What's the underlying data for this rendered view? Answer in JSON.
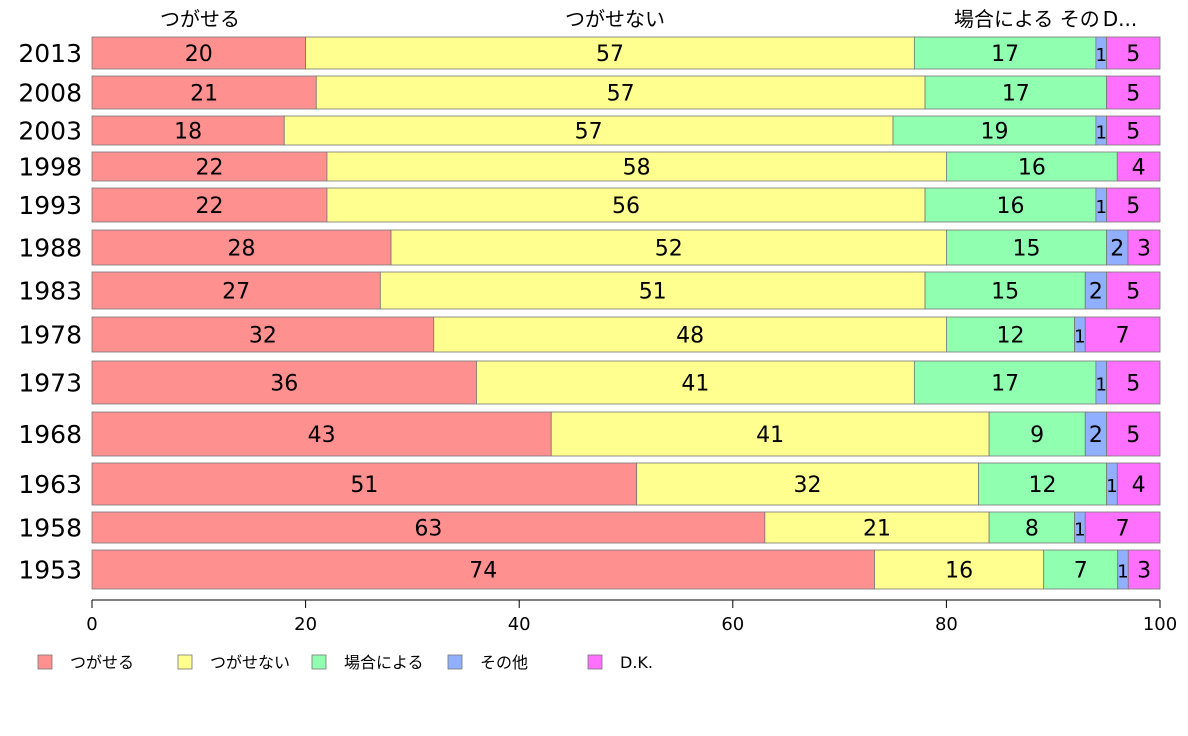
{
  "chart_data": {
    "type": "bar",
    "orientation": "horizontal",
    "stacked": true,
    "categories": [
      "2013",
      "2008",
      "2003",
      "1998",
      "1993",
      "1988",
      "1983",
      "1978",
      "1973",
      "1968",
      "1963",
      "1958",
      "1953"
    ],
    "series": [
      {
        "name": "つがせる",
        "color": "#ff9090",
        "values": [
          20,
          21,
          18,
          22,
          22,
          28,
          27,
          32,
          36,
          43,
          51,
          63,
          74
        ]
      },
      {
        "name": "つがせない",
        "color": "#ffff90",
        "values": [
          57,
          57,
          57,
          58,
          56,
          52,
          51,
          48,
          41,
          41,
          32,
          21,
          16
        ]
      },
      {
        "name": "場合による",
        "color": "#90ffb0",
        "values": [
          17,
          17,
          19,
          16,
          16,
          15,
          15,
          12,
          17,
          9,
          12,
          8,
          7
        ]
      },
      {
        "name": "その他",
        "color": "#90b0ff",
        "values": [
          1,
          0,
          1,
          0,
          1,
          2,
          2,
          1,
          1,
          2,
          1,
          1,
          1
        ]
      },
      {
        "name": "D.K.",
        "color": "#ff70ff",
        "values": [
          5,
          5,
          5,
          4,
          5,
          3,
          5,
          7,
          5,
          5,
          4,
          7,
          3
        ]
      }
    ],
    "top_labels": [
      "つがせる",
      "つがせない",
      "場合による その",
      "D..."
    ],
    "xlim": [
      0,
      100
    ],
    "xticks": [
      0,
      20,
      40,
      60,
      80,
      100
    ],
    "grid": false,
    "legend_position": "bottom"
  }
}
